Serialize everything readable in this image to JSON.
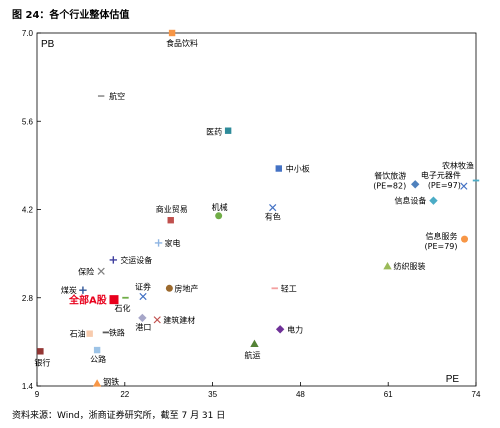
{
  "title": "图 24：各个行业整体估值",
  "source": "资料来源：Wind，浙商证券研究所，截至 7 月 31 日",
  "chart_data": {
    "type": "scatter",
    "xlabel": "PE",
    "ylabel": "PB",
    "xlim": [
      9,
      74
    ],
    "ylim": [
      1.4,
      7.0
    ],
    "xticks": [
      "9",
      "22",
      "35",
      "48",
      "61",
      "74"
    ],
    "yticks": [
      "1.4",
      "2.8",
      "4.2",
      "5.6",
      "7.0"
    ],
    "grid": false,
    "points": [
      {
        "name": "食品饮料",
        "x": 29.0,
        "y": 7.0,
        "marker": "square",
        "color": "#f79646"
      },
      {
        "name": "航空",
        "x": 18.5,
        "y": 6.0,
        "marker": "dash",
        "color": "#9b9b9b"
      },
      {
        "name": "医药",
        "x": 37.3,
        "y": 5.45,
        "marker": "square",
        "color": "#2e8b9a"
      },
      {
        "name": "中小板",
        "x": 44.8,
        "y": 4.85,
        "marker": "square",
        "color": "#4472c4"
      },
      {
        "name": "商业贸易",
        "x": 28.8,
        "y": 4.03,
        "marker": "square",
        "color": "#c0504d"
      },
      {
        "name": "机械",
        "x": 35.9,
        "y": 4.1,
        "marker": "circle",
        "color": "#70ad47"
      },
      {
        "name": "有色",
        "x": 43.9,
        "y": 4.23,
        "marker": "x",
        "color": "#4472c4"
      },
      {
        "name": "家电",
        "x": 27.0,
        "y": 3.67,
        "marker": "plus",
        "color": "#8db4e2"
      },
      {
        "name": "交运设备",
        "x": 20.3,
        "y": 3.4,
        "marker": "plus",
        "color": "#3f3f9f"
      },
      {
        "name": "保险",
        "x": 18.5,
        "y": 3.22,
        "marker": "x",
        "color": "#7f7f7f"
      },
      {
        "name": "煤炭",
        "x": 15.8,
        "y": 2.92,
        "marker": "plus",
        "color": "#2f5597"
      },
      {
        "name": "全部A股",
        "x": 20.4,
        "y": 2.77,
        "marker": "square",
        "color": "#e8001c",
        "highlight": true
      },
      {
        "name": "石化",
        "x": 22.1,
        "y": 2.8,
        "marker": "dash",
        "color": "#70ad47"
      },
      {
        "name": "证券",
        "x": 24.7,
        "y": 2.82,
        "marker": "x",
        "color": "#4472c4"
      },
      {
        "name": "房地产",
        "x": 28.6,
        "y": 2.95,
        "marker": "circle",
        "color": "#9c6a2e"
      },
      {
        "name": "轻工",
        "x": 44.2,
        "y": 2.95,
        "marker": "dash",
        "color": "#f4a0a0"
      },
      {
        "name": "建筑建材",
        "x": 26.8,
        "y": 2.45,
        "marker": "x",
        "color": "#c0504d"
      },
      {
        "name": "港口",
        "x": 24.6,
        "y": 2.48,
        "marker": "diamond",
        "color": "#a6a6c8"
      },
      {
        "name": "石油",
        "x": 16.8,
        "y": 2.23,
        "marker": "square",
        "color": "#f8cbad"
      },
      {
        "name": "铁路",
        "x": 19.2,
        "y": 2.25,
        "marker": "dash",
        "color": "#595959"
      },
      {
        "name": "电力",
        "x": 45.0,
        "y": 2.3,
        "marker": "diamond",
        "color": "#6f3198"
      },
      {
        "name": "航运",
        "x": 41.2,
        "y": 2.07,
        "marker": "triangle",
        "color": "#548235"
      },
      {
        "name": "公路",
        "x": 17.9,
        "y": 1.97,
        "marker": "square",
        "color": "#9dc3e6"
      },
      {
        "name": "银行",
        "x": 9.5,
        "y": 1.95,
        "marker": "square",
        "color": "#943634"
      },
      {
        "name": "钢铁",
        "x": 17.9,
        "y": 1.44,
        "marker": "triangle",
        "color": "#f79646"
      },
      {
        "name": "纺织服装",
        "x": 60.9,
        "y": 3.3,
        "marker": "triangle",
        "color": "#9bbb59"
      },
      {
        "name": "餐饮旅游\n(PE=82)",
        "x": 65.0,
        "y": 4.6,
        "marker": "diamond",
        "color": "#4f81bd"
      },
      {
        "name": "信息设备",
        "x": 67.7,
        "y": 4.34,
        "marker": "diamond",
        "color": "#4bacc6"
      },
      {
        "name": "电子元器件\n(PE=97)",
        "x": 72.2,
        "y": 4.57,
        "marker": "x",
        "color": "#4472c4"
      },
      {
        "name": "农林牧渔",
        "x": 74.0,
        "y": 4.66,
        "marker": "dash",
        "color": "#4bacc6"
      },
      {
        "name": "信息服务\n(PE=79)",
        "x": 72.3,
        "y": 3.73,
        "marker": "circle",
        "color": "#f79646"
      }
    ]
  }
}
